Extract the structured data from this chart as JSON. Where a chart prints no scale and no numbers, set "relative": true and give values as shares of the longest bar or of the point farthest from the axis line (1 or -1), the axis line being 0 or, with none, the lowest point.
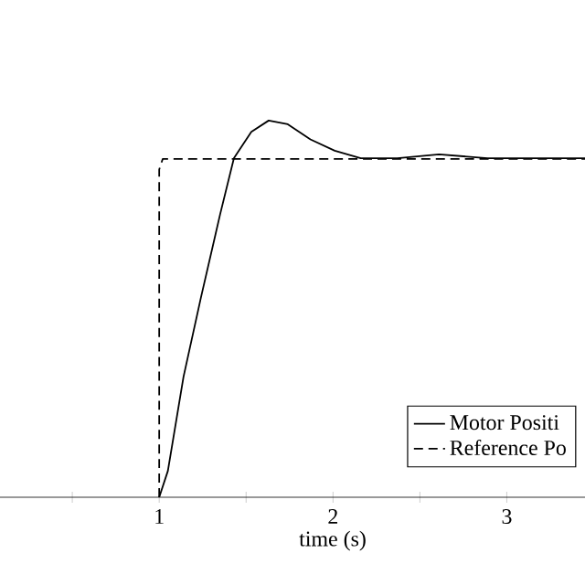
{
  "chart_data": {
    "type": "line",
    "xlabel": "time (s)",
    "relative": true,
    "xlim": [
      0.084,
      3.45
    ],
    "xticks": [
      {
        "value": 0.5,
        "label": null
      },
      1,
      {
        "value": 1.5,
        "label": null
      },
      2,
      {
        "value": 2.5,
        "label": null
      },
      3
    ],
    "legend": "bottom right",
    "tick_labels": "x",
    "series": [
      {
        "name": "Motor Positi",
        "color": "#000000",
        "line_style": "solid",
        "x": [
          1.0,
          1.05,
          1.14,
          1.24,
          1.35,
          1.43,
          1.53,
          1.63,
          1.74,
          1.87,
          2.01,
          2.16,
          2.37,
          2.61,
          2.89,
          3.45
        ],
        "values": [
          0,
          0.07,
          0.32,
          0.53,
          0.75,
          0.9,
          0.97,
          1.0,
          0.99,
          0.95,
          0.92,
          0.9,
          0.9,
          0.91,
          0.9,
          0.9
        ]
      },
      {
        "name": "Reference Po",
        "color": "#000000",
        "line_style": "dashed",
        "x": [
          1.0,
          1.0,
          1.02,
          3.45
        ],
        "values": [
          0,
          0.87,
          0.898,
          0.898
        ]
      }
    ]
  }
}
